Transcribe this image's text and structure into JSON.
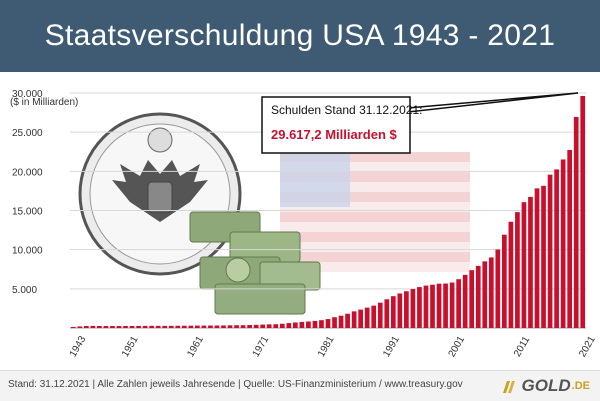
{
  "title": "Staatsverschuldung USA 1943 - 2021",
  "chart_data": {
    "type": "bar",
    "y_unit_label": "($ in Milliarden)",
    "ylim": [
      0,
      30000
    ],
    "y_ticks": [
      "30.000",
      "25.000",
      "20.000",
      "15.000",
      "10.000",
      "5.000"
    ],
    "y_tick_values": [
      30000,
      25000,
      20000,
      15000,
      10000,
      5000
    ],
    "x_tick_labels": [
      "1943",
      "1951",
      "1961",
      "1971",
      "1981",
      "1991",
      "2001",
      "2011",
      "2021"
    ],
    "grid": true,
    "x": [
      1943,
      1944,
      1945,
      1946,
      1947,
      1948,
      1949,
      1950,
      1951,
      1952,
      1953,
      1954,
      1955,
      1956,
      1957,
      1958,
      1959,
      1960,
      1961,
      1962,
      1963,
      1964,
      1965,
      1966,
      1967,
      1968,
      1969,
      1970,
      1971,
      1972,
      1973,
      1974,
      1975,
      1976,
      1977,
      1978,
      1979,
      1980,
      1981,
      1982,
      1983,
      1984,
      1985,
      1986,
      1987,
      1988,
      1989,
      1990,
      1991,
      1992,
      1993,
      1994,
      1995,
      1996,
      1997,
      1998,
      1999,
      2000,
      2001,
      2002,
      2003,
      2004,
      2005,
      2006,
      2007,
      2008,
      2009,
      2010,
      2011,
      2012,
      2013,
      2014,
      2015,
      2016,
      2017,
      2018,
      2019,
      2020,
      2021
    ],
    "values": [
      137,
      201,
      259,
      269,
      258,
      252,
      253,
      257,
      255,
      259,
      266,
      271,
      274,
      273,
      272,
      280,
      288,
      291,
      295,
      303,
      307,
      317,
      320,
      326,
      345,
      358,
      354,
      381,
      408,
      436,
      466,
      484,
      542,
      629,
      706,
      776,
      829,
      908,
      998,
      1142,
      1377,
      1572,
      1823,
      2125,
      2350,
      2602,
      2857,
      3233,
      3665,
      4065,
      4411,
      4693,
      4974,
      5225,
      5413,
      5526,
      5656,
      5674,
      5807,
      6228,
      6783,
      7379,
      7933,
      8507,
      9008,
      10025,
      11910,
      13562,
      14790,
      16066,
      16738,
      17824,
      18151,
      19573,
      20245,
      21516,
      22719,
      26945,
      29617.2
    ],
    "bar_color": "#c8102e",
    "annotation": {
      "label": "Schulden Stand 31.12.2021:",
      "value": "29.617,2 Milliarden $",
      "value_color": "#c8102e"
    }
  },
  "footer": {
    "text": "Stand: 31.12.2021  |  Alle Zahlen jeweils Jahresende  |  Quelle: US-Finanzministerium / www.treasury.gov"
  },
  "logo": {
    "word": "GOLD",
    "suffix": ".DE",
    "gold_color": "#c9a227"
  }
}
